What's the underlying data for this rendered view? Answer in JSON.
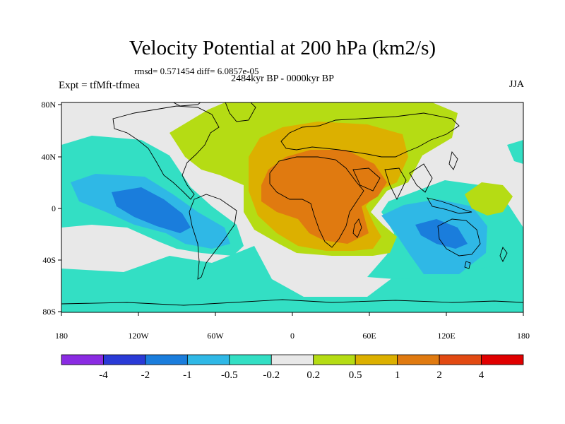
{
  "title": "Velocity Potential at 200 hPa (km2/s)",
  "stats": "rmsd= 0.571454 diff= 6.0857e-05",
  "period": "2484kyr BP - 0000kyr BP",
  "experiment": "Expt = tfMft-tfmea",
  "season": "JJA",
  "lat_labels": [
    "80N",
    "40N",
    "0",
    "40S",
    "80S"
  ],
  "lon_labels": [
    "180",
    "120W",
    "60W",
    "0",
    "60E",
    "120E",
    "180"
  ],
  "colorbar": {
    "labels": [
      "-4",
      "-2",
      "-1",
      "-0.5",
      "-0.2",
      "0.2",
      "0.5",
      "1",
      "2",
      "4"
    ],
    "colors": [
      "#8a2be2",
      "#2a3ad6",
      "#1a7ddc",
      "#2fb8e6",
      "#33dfc4",
      "#e8e8e8",
      "#b5dc14",
      "#dcb000",
      "#e07a10",
      "#e24a12",
      "#e00000"
    ]
  },
  "map_colors": {
    "ocean_bg": "#e8e8e8",
    "cyan": "#33dfc4",
    "lightblue": "#2fb8e6",
    "blue": "#1a7ddc",
    "lime": "#b5dc14",
    "gold": "#dcb000",
    "orange": "#e07a10"
  }
}
